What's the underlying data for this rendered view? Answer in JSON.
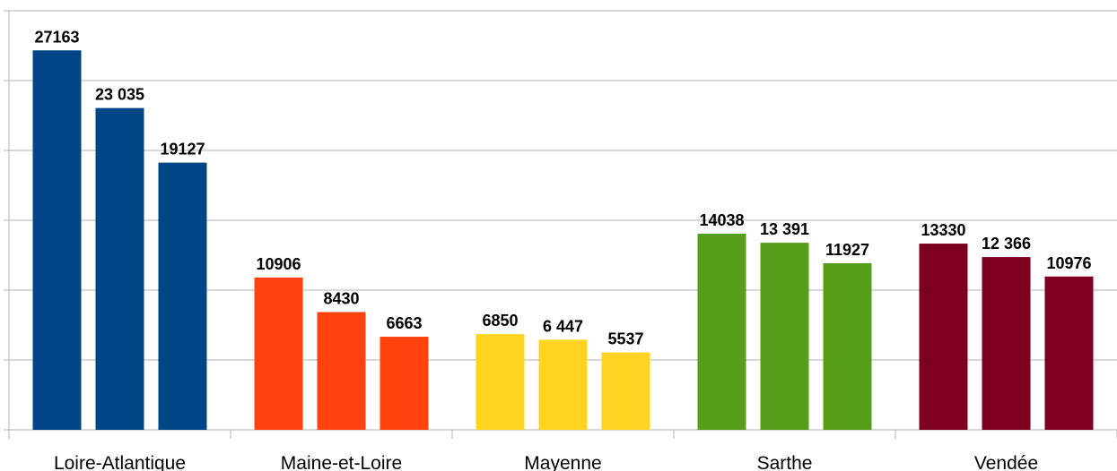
{
  "chart_data": {
    "type": "bar",
    "categories": [
      "Loire-Atlantique",
      "Maine-et-Loire",
      "Mayenne",
      "Sarthe",
      "Vendée"
    ],
    "colors": [
      "#004586",
      "#ff420e",
      "#ffd320",
      "#579d1c",
      "#7e0021"
    ],
    "series": [
      {
        "values": [
          27163,
          10906,
          6850,
          14038,
          13330
        ]
      },
      {
        "values": [
          23035,
          8430,
          6447,
          13391,
          12366
        ],
        "value_labels": [
          "23 035",
          "8430",
          "6 447",
          "13 391",
          "12 366"
        ]
      },
      {
        "values": [
          19127,
          6663,
          5537,
          11927,
          10976
        ]
      }
    ],
    "ylim": [
      0,
      30000
    ],
    "yticks": [
      0,
      5000,
      10000,
      15000,
      20000,
      25000,
      30000
    ],
    "grid": true
  }
}
